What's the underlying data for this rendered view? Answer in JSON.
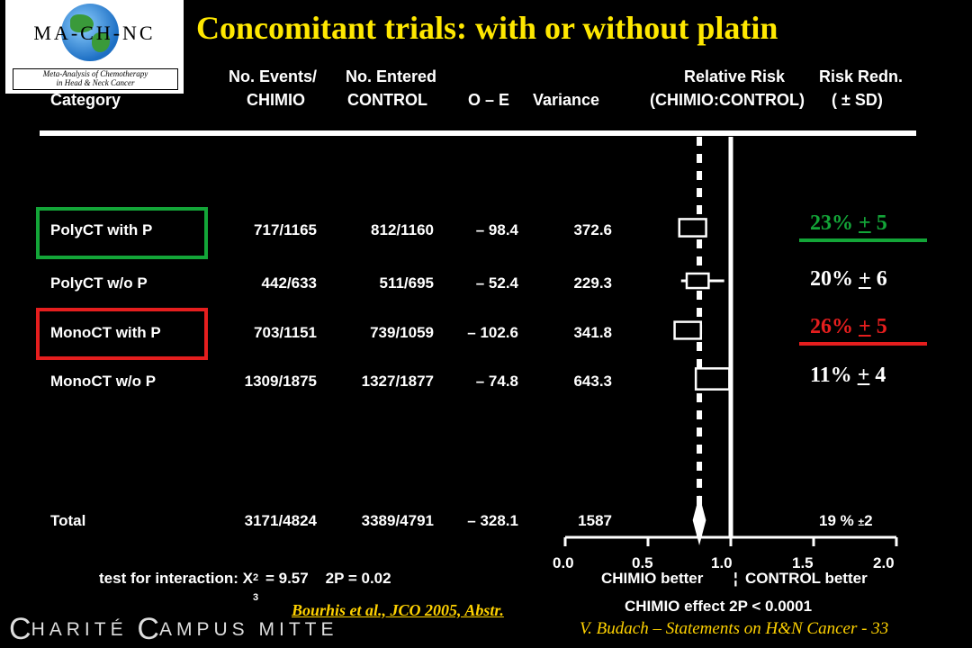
{
  "logo": {
    "acronym": "MA-CH-NC",
    "subtitle_line1": "Meta-Analysis of Chemotherapy",
    "subtitle_line2": "in Head & Neck Cancer"
  },
  "title": "Concomitant trials: with or without platin",
  "headers": {
    "category": "Category",
    "events_top": "No.  Events/",
    "entered_top": "No.  Entered",
    "chimio": "CHIMIO",
    "control": "CONTROL",
    "oe": "O – E",
    "variance": "Variance",
    "rr_top": "Relative  Risk",
    "rr_bottom": "(CHIMIO:CONTROL)",
    "redn_top": "Risk  Redn.",
    "redn_bottom": "( ± SD)"
  },
  "rows": [
    {
      "category": "PolyCT  with  P",
      "chimio": "717/1165",
      "control": "812/1160",
      "oe": "– 98.4",
      "variance": "372.6",
      "redn": "23% + 5",
      "redn_pct": "23%",
      "redn_sd": "5"
    },
    {
      "category": "PolyCT  w/o  P",
      "chimio": "442/633",
      "control": "511/695",
      "oe": "– 52.4",
      "variance": "229.3",
      "redn": "20% + 6",
      "redn_pct": "20%",
      "redn_sd": "6"
    },
    {
      "category": "MonoCT  with  P",
      "chimio": "703/1151",
      "control": "739/1059",
      "oe": "– 102.6",
      "variance": "341.8",
      "redn": "26% + 5",
      "redn_pct": "26%",
      "redn_sd": "5"
    },
    {
      "category": "MonoCT  w/o  P",
      "chimio": "1309/1875",
      "control": "1327/1877",
      "oe": "– 74.8",
      "variance": "643.3",
      "redn": "11% + 4",
      "redn_pct": "11%",
      "redn_sd": "4"
    }
  ],
  "total": {
    "category": "Total",
    "chimio": "3171/4824",
    "control": "3389/4791",
    "oe": "– 328.1",
    "variance": "1587",
    "redn_pct": "19 %",
    "redn_sd": "2"
  },
  "interaction": {
    "label": "test  for  interaction:  X",
    "sup": "2",
    "sub": "3",
    "value": "=    9.57",
    "p": "2P  = 0.02"
  },
  "axis": {
    "better_left": "CHIMIO  better",
    "separator": "¦",
    "better_right": "CONTROL  better",
    "effect": "CHIMIO  effect  2P < 0.0001"
  },
  "footer": {
    "citation": "Bourhis et al., JCO 2005, Abstr.",
    "slide": "V. Budach – Statements on H&N Cancer - 33",
    "brand_c1": "C",
    "brand_w1": "HARITÉ",
    "brand_c2": "C",
    "brand_w2": "AMPUS  MITTE"
  },
  "colors": {
    "title": "#ffe800",
    "green": "#13a538",
    "red": "#e51e1e",
    "footer": "#ffd200"
  },
  "chart_data": {
    "type": "forest",
    "xlim": [
      0.0,
      2.0
    ],
    "ticks": [
      "0.0",
      "0.5",
      "1.0",
      "1.5",
      "2.0"
    ],
    "tick_values": [
      0.0,
      0.5,
      1.0,
      1.5,
      2.0
    ],
    "reference_line": 1.0,
    "overall_line": 0.81,
    "points": [
      {
        "rr": 0.77,
        "lo": 0.7,
        "hi": 0.85,
        "size": 0.62
      },
      {
        "rr": 0.8,
        "lo": 0.7,
        "hi": 0.96,
        "size": 0.45
      },
      {
        "rr": 0.74,
        "lo": 0.67,
        "hi": 0.82,
        "size": 0.6
      },
      {
        "rr": 0.89,
        "lo": 0.82,
        "hi": 0.97,
        "size": 0.85
      }
    ],
    "total": {
      "rr": 0.81,
      "lo": 0.77,
      "hi": 0.85
    }
  }
}
